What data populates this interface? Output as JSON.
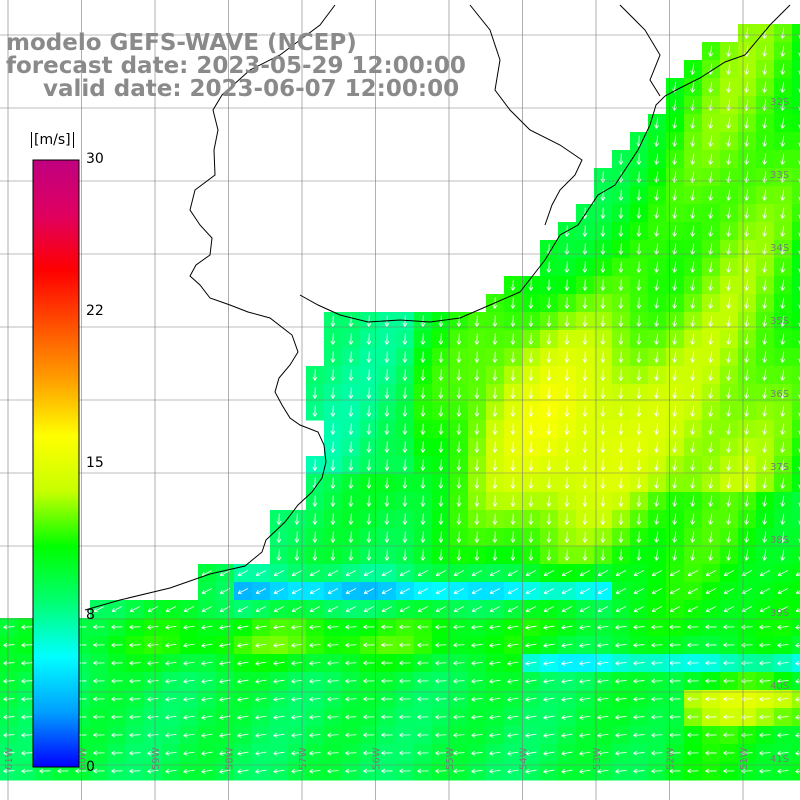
{
  "title": {
    "model": "modelo GEFS-WAVE (NCEP)",
    "forecast": "forecast date: 2023-05-29 12:00:00",
    "valid": "valid date: 2023-06-07 12:00:00"
  },
  "colorbar": {
    "unit": "[m/s]",
    "ticks": [
      "30",
      "22",
      "15",
      "8",
      "0"
    ],
    "colors": [
      "#0000ff",
      "#00a0ff",
      "#00ffff",
      "#00ff70",
      "#00ff00",
      "#c8ff00",
      "#ffff00",
      "#ffa000",
      "#ff5000",
      "#ff0000",
      "#e00060",
      "#c00080"
    ]
  },
  "grid": {
    "right_labels": [
      "32S",
      "33S",
      "34S",
      "35S",
      "36S",
      "37S",
      "38S",
      "39S",
      "40S",
      "41S"
    ],
    "bottom_labels": [
      "61W",
      "60W",
      "59W",
      "58W",
      "57W",
      "56W",
      "55W",
      "54W",
      "53W",
      "52W",
      "51W"
    ]
  },
  "colors": {
    "land": "#ffffff",
    "coast": "#000000",
    "grid": "#7a7a7a",
    "title": "#8a8a8a",
    "arrow": "#ffffff"
  }
}
